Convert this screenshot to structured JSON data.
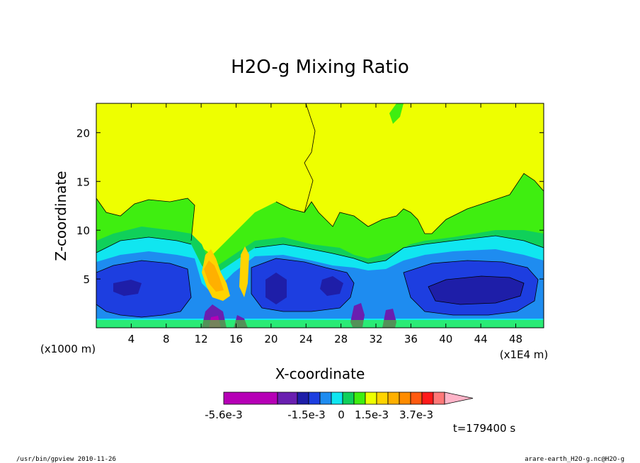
{
  "chart_data": {
    "type": "heatmap",
    "title": "H2O-g Mixing Ratio",
    "xlabel": "X-coordinate",
    "ylabel": "Z-coordinate",
    "x_unit": "(x1E4 m)",
    "y_unit": "(x1000 m)",
    "x_ticks": [
      4,
      8,
      12,
      16,
      20,
      24,
      28,
      32,
      36,
      40,
      44,
      48
    ],
    "y_ticks": [
      5,
      10,
      15,
      20
    ],
    "xlim": [
      0,
      51.2
    ],
    "ylim": [
      0,
      23
    ],
    "colorbar": {
      "colors": [
        "#b600b6",
        "#6a1fb0",
        "#1e1ea8",
        "#1d3ee0",
        "#1e8cf0",
        "#10e6f0",
        "#10d05a",
        "#3fee10",
        "#eeff00",
        "#ffd400",
        "#ffb000",
        "#ff8c00",
        "#ff5a10",
        "#ff1a1a",
        "#ff7878",
        "#ffb4c8"
      ],
      "labels": [
        "-5.6e-3",
        "-1.5e-3",
        "0",
        "1.5e-3",
        "3.7e-3"
      ]
    },
    "time_label": "t=179400 s"
  },
  "footer": {
    "left": "/usr/bin/gpview   2010-11-26",
    "right": "arare-earth_H2O-g.nc@H2O-g"
  }
}
